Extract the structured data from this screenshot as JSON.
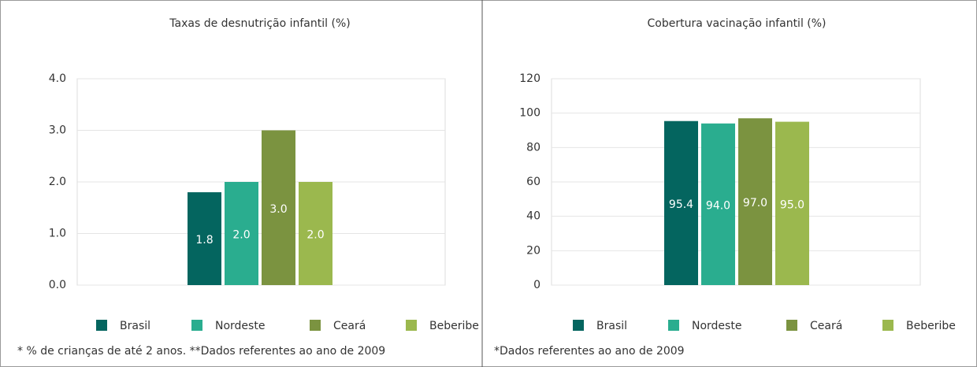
{
  "chart_data": [
    {
      "type": "bar",
      "title": "Taxas de desnutrição infantil (%)",
      "categories": [
        null
      ],
      "series": [
        {
          "name": "Brasil",
          "color": "#04655f",
          "values": [
            1.8
          ],
          "value_labels": [
            "1.8"
          ]
        },
        {
          "name": "Nordeste",
          "color": "#2aad8f",
          "values": [
            2.0
          ],
          "value_labels": [
            "2.0"
          ]
        },
        {
          "name": "Ceará",
          "color": "#7b9340",
          "values": [
            3.0
          ],
          "value_labels": [
            "3.0"
          ]
        },
        {
          "name": "Beberibe",
          "color": "#9bb84e",
          "values": [
            2.0
          ],
          "value_labels": [
            "2.0"
          ]
        }
      ],
      "ylim": [
        0,
        4
      ],
      "yticks": [
        {
          "value": 0,
          "label": "0.0"
        },
        {
          "value": 1,
          "label": "1.0"
        },
        {
          "value": 2,
          "label": "2.0"
        },
        {
          "value": 3,
          "label": "3.0"
        },
        {
          "value": 4,
          "label": "4.0"
        }
      ],
      "note": "* % de crianças de até 2 anos. **Dados referentes ao ano de 2009"
    },
    {
      "type": "bar",
      "title": "Cobertura vacinação infantil (%)",
      "categories": [
        null
      ],
      "series": [
        {
          "name": "Brasil",
          "color": "#04655f",
          "values": [
            95.4
          ],
          "value_labels": [
            "95.4"
          ]
        },
        {
          "name": "Nordeste",
          "color": "#2aad8f",
          "values": [
            94.0
          ],
          "value_labels": [
            "94.0"
          ]
        },
        {
          "name": "Ceará",
          "color": "#7b9340",
          "values": [
            97.0
          ],
          "value_labels": [
            "97.0"
          ]
        },
        {
          "name": "Beberibe",
          "color": "#9bb84e",
          "values": [
            95.0
          ],
          "value_labels": [
            "95.0"
          ]
        }
      ],
      "ylim": [
        0,
        120
      ],
      "yticks": [
        0,
        20,
        40,
        60,
        80,
        100,
        120
      ],
      "note": "*Dados referentes ao ano de 2009"
    }
  ]
}
